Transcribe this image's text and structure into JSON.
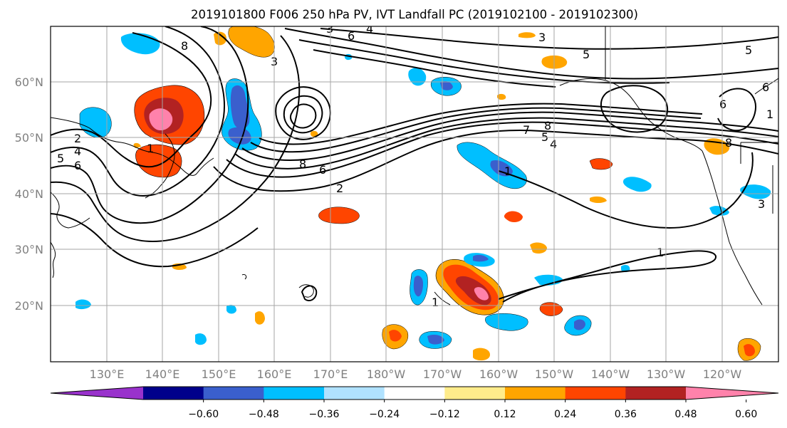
{
  "title": "2019101800 F006 250 hPa PV, IVT Landfall PC (2019102100 - 2019102300)",
  "map": {
    "lon_labels": [
      "130°E",
      "140°E",
      "150°E",
      "160°E",
      "170°E",
      "180°W",
      "170°W",
      "160°W",
      "150°W",
      "140°W",
      "130°W",
      "120°W"
    ],
    "lat_labels": [
      "60°N",
      "50°N",
      "40°N",
      "30°N",
      "20°N"
    ],
    "gridline_color": "#a6a6a6",
    "contour_color": "#000000",
    "contour_labels": [
      "8",
      "3",
      "6",
      "4",
      "3",
      "3",
      "5",
      "5",
      "6",
      "2",
      "5",
      "4",
      "6",
      "8",
      "6",
      "2",
      "7",
      "8",
      "5",
      "4",
      "1",
      "8",
      "6",
      "1",
      "3",
      "1",
      "1",
      "1"
    ]
  },
  "colorbar": {
    "tick_labels": [
      "−0.60",
      "−0.48",
      "−0.36",
      "−0.24",
      "−0.12",
      "0.12",
      "0.24",
      "0.36",
      "0.48",
      "0.60"
    ],
    "levels": [
      -0.6,
      -0.48,
      -0.36,
      -0.24,
      -0.12,
      0.12,
      0.24,
      0.36,
      0.48,
      0.6
    ],
    "colors": [
      "#9932cc",
      "#00008b",
      "#3a5fcd",
      "#00bfff",
      "#b0e2ff",
      "#ffffff",
      "#ffec8b",
      "#ffa500",
      "#ff4500",
      "#b22222",
      "#ff82ab"
    ]
  }
}
